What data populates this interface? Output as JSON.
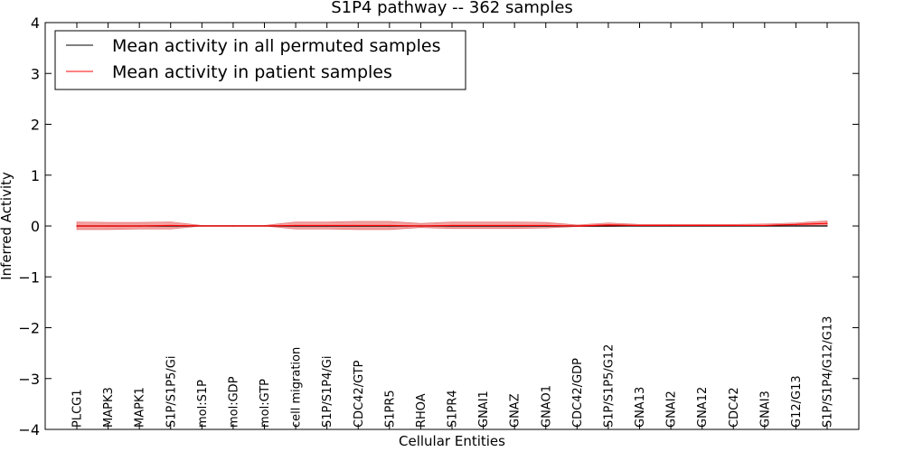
{
  "chart_data": {
    "type": "line",
    "title": "S1P4 pathway -- 362 samples",
    "xlabel": "Cellular Entities",
    "ylabel": "Inferred Activity",
    "ylim": [
      -4,
      4
    ],
    "yticks": [
      -4,
      -3,
      -2,
      -1,
      0,
      1,
      2,
      3,
      4
    ],
    "ytick_labels": [
      "−4",
      "−3",
      "−2",
      "−1",
      "0",
      "1",
      "2",
      "3",
      "4"
    ],
    "grid": false,
    "legend_position": "top-left",
    "categories": [
      "PLCG1",
      "MAPK3",
      "MAPK1",
      "S1P/S1P5/Gi",
      "mol:S1P",
      "mol:GDP",
      "mol:GTP",
      "cell migration",
      "S1P/S1P4/Gi",
      "CDC42/GTP",
      "S1PR5",
      "RHOA",
      "S1PR4",
      "GNAI1",
      "GNAZ",
      "GNAO1",
      "CDC42/GDP",
      "S1P/S1P5/G12",
      "GNA13",
      "GNAI2",
      "GNA12",
      "CDC42",
      "GNAI3",
      "G12/G13",
      "S1P/S1P4/G12/G13"
    ],
    "series": [
      {
        "name": "Mean activity in all permuted samples",
        "color": "#000000",
        "values": [
          0,
          0,
          0,
          0,
          0,
          0,
          0,
          0,
          0,
          0,
          0,
          0,
          0,
          0,
          0,
          0,
          0,
          0,
          0,
          0,
          0,
          0,
          0,
          0,
          0
        ]
      },
      {
        "name": "Mean activity in patient samples",
        "color": "#ff0000",
        "values": [
          0,
          0,
          0,
          0.01,
          0,
          0,
          0,
          0.01,
          0.01,
          0.01,
          0.01,
          0,
          0.01,
          0.01,
          0.01,
          0.01,
          0,
          0.02,
          0.01,
          0.01,
          0.01,
          0.01,
          0.01,
          0.03,
          0.05
        ],
        "band_lower": [
          -0.07,
          -0.07,
          -0.06,
          -0.06,
          0,
          0,
          0,
          -0.06,
          -0.06,
          -0.07,
          -0.07,
          -0.03,
          -0.05,
          -0.05,
          -0.05,
          -0.04,
          -0.01,
          -0.01,
          0,
          0,
          0,
          0,
          0,
          0,
          0
        ],
        "band_upper": [
          0.08,
          0.07,
          0.07,
          0.08,
          0.01,
          0.01,
          0.01,
          0.08,
          0.08,
          0.09,
          0.09,
          0.05,
          0.08,
          0.08,
          0.08,
          0.07,
          0.02,
          0.06,
          0.03,
          0.03,
          0.03,
          0.03,
          0.04,
          0.06,
          0.1
        ],
        "band_color": "#f08080"
      }
    ]
  }
}
